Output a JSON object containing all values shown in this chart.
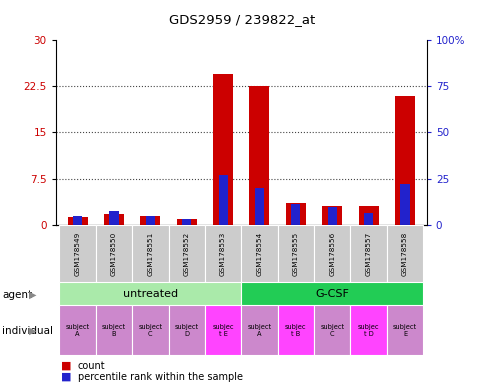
{
  "title": "GDS2959 / 239822_at",
  "samples": [
    "GSM178549",
    "GSM178550",
    "GSM178551",
    "GSM178552",
    "GSM178553",
    "GSM178554",
    "GSM178555",
    "GSM178556",
    "GSM178557",
    "GSM178558"
  ],
  "count_values": [
    1.2,
    1.8,
    1.4,
    0.9,
    24.5,
    22.5,
    3.5,
    3.0,
    3.0,
    21.0
  ],
  "percentile_values": [
    4.5,
    7.5,
    4.5,
    3.0,
    27.0,
    20.0,
    11.0,
    9.5,
    6.5,
    22.0
  ],
  "ylim_left": [
    0,
    30
  ],
  "ylim_right": [
    0,
    100
  ],
  "yticks_left": [
    0,
    7.5,
    15,
    22.5,
    30
  ],
  "yticks_right": [
    0,
    25,
    50,
    75,
    100
  ],
  "ytick_labels_left": [
    "0",
    "7.5",
    "15",
    "22.5",
    "30"
  ],
  "ytick_labels_right": [
    "0",
    "25",
    "50",
    "75",
    "100%"
  ],
  "agent_groups": [
    {
      "label": "untreated",
      "start": 0,
      "end": 4,
      "color": "#aaeaaa"
    },
    {
      "label": "G-CSF",
      "start": 5,
      "end": 9,
      "color": "#22cc55"
    }
  ],
  "individual_labels": [
    "subject\nA",
    "subject\nB",
    "subject\nC",
    "subject\nD",
    "subjec\nt E",
    "subject\nA",
    "subjec\nt B",
    "subject\nC",
    "subjec\nt D",
    "subject\nE"
  ],
  "individual_colors": [
    "#cc88cc",
    "#cc88cc",
    "#cc88cc",
    "#cc88cc",
    "#ff44ff",
    "#cc88cc",
    "#ff44ff",
    "#cc88cc",
    "#ff44ff",
    "#cc88cc"
  ],
  "bar_color_red": "#cc0000",
  "bar_color_blue": "#2222cc",
  "bar_width": 0.55,
  "blue_bar_width": 0.25,
  "tick_label_color_left": "#cc0000",
  "tick_label_color_right": "#2222cc",
  "gridline_color": "#444444",
  "sample_bg": "#cccccc"
}
